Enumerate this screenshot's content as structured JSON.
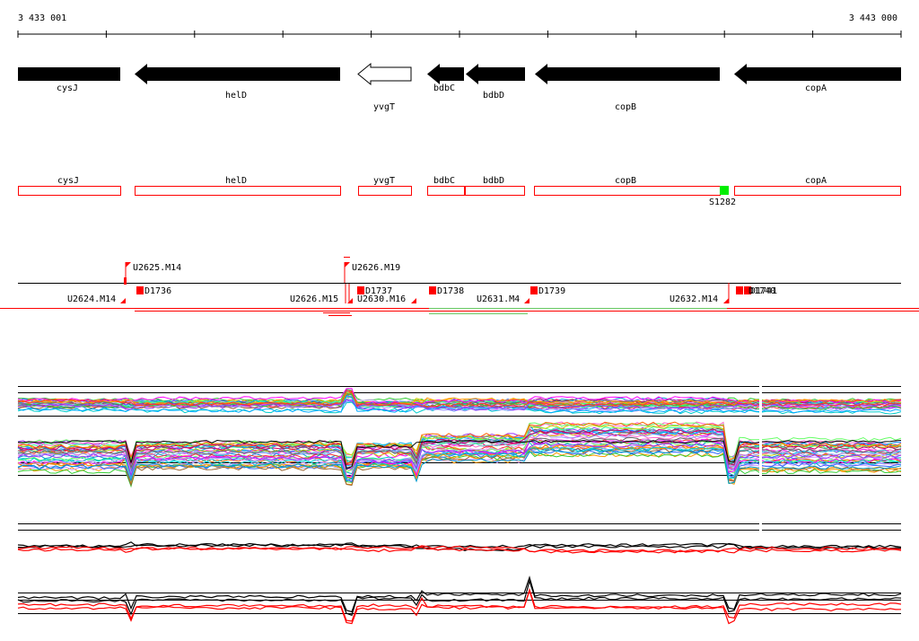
{
  "ruler": {
    "start_label": "3 433 001",
    "end_label": "3 443 000"
  },
  "genes": [
    {
      "name": "cysJ",
      "strand": "-",
      "filled": true
    },
    {
      "name": "helD",
      "strand": "-",
      "filled": true
    },
    {
      "name": "yvgT",
      "strand": "-",
      "filled": false
    },
    {
      "name": "bdbC",
      "strand": "-",
      "filled": true
    },
    {
      "name": "bdbD",
      "strand": "-",
      "filled": true
    },
    {
      "name": "copB",
      "strand": "-",
      "filled": true
    },
    {
      "name": "copA",
      "strand": "-",
      "filled": true
    }
  ],
  "gene_boxes": [
    "cysJ",
    "helD",
    "yvgT",
    "bdbC",
    "bdbD",
    "copB",
    "copA"
  ],
  "site_marker": {
    "label": "S1282",
    "color": "#00ee00"
  },
  "transcripts_top": [
    "U2625.M14",
    "U2626.M19"
  ],
  "transcripts_bottom": [
    "U2624.M14",
    "U2626.M15",
    "U2630.M16",
    "U2631.M4",
    "U2632.M14"
  ],
  "downstream_sites": [
    "D1736",
    "D1737",
    "D1738",
    "D1739",
    "D1740",
    "D1741"
  ],
  "colors": {
    "accent": "#ff0000",
    "site": "#00ee00",
    "gene": "#000000"
  }
}
